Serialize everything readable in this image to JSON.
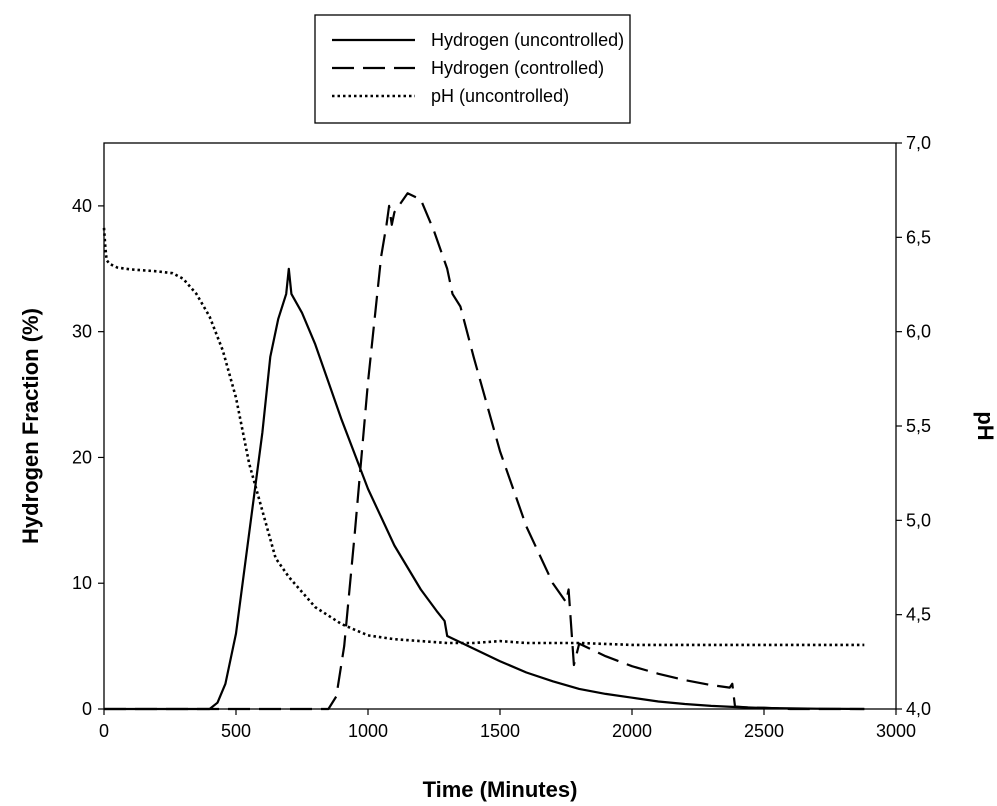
{
  "chart_data": {
    "type": "line",
    "title": "",
    "xlabel": "Time (Minutes)",
    "ylabel": "Hydrogen Fraction (%)",
    "y2label": "pH",
    "xlim": [
      0,
      3000
    ],
    "ylim": [
      0,
      45
    ],
    "y2lim": [
      4.0,
      7.0
    ],
    "x_ticks": [
      "0",
      "500",
      "1000",
      "1500",
      "2000",
      "2500",
      "3000"
    ],
    "y_ticks": [
      "0",
      "10",
      "20",
      "30",
      "40"
    ],
    "y2_ticks": [
      "4,0",
      "4,5",
      "5,0",
      "5,5",
      "6,0",
      "6,5",
      "7,0"
    ],
    "grid": false,
    "legend_position": "top-center",
    "series": [
      {
        "name": "Hydrogen (uncontrolled)",
        "axis": "left",
        "style": "solid",
        "color": "#000000",
        "x": [
          0,
          400,
          430,
          460,
          500,
          550,
          600,
          630,
          660,
          690,
          700,
          705,
          710,
          750,
          800,
          900,
          1000,
          1100,
          1200,
          1260,
          1290,
          1300,
          1400,
          1500,
          1600,
          1700,
          1800,
          1900,
          2000,
          2100,
          2200,
          2300,
          2400,
          2500,
          2600,
          2700,
          2880
        ],
        "y": [
          0,
          0,
          0.5,
          2,
          6,
          14,
          22,
          28,
          31,
          33,
          35,
          34,
          33,
          31.5,
          29,
          23,
          17.5,
          13,
          9.5,
          7.8,
          7,
          5.8,
          4.8,
          3.8,
          2.9,
          2.2,
          1.6,
          1.2,
          0.9,
          0.6,
          0.4,
          0.25,
          0.15,
          0.08,
          0.05,
          0.02,
          0
        ]
      },
      {
        "name": "Hydrogen (controlled)",
        "axis": "left",
        "style": "dashed",
        "color": "#000000",
        "x": [
          0,
          850,
          880,
          910,
          950,
          1000,
          1050,
          1070,
          1080,
          1090,
          1100,
          1150,
          1200,
          1250,
          1300,
          1320,
          1350,
          1400,
          1500,
          1600,
          1700,
          1750,
          1760,
          1780,
          1800,
          1900,
          2000,
          2100,
          2200,
          2300,
          2370,
          2380,
          2390,
          2450,
          2500,
          2600,
          2700,
          2880
        ],
        "y": [
          0,
          0,
          1,
          5,
          14,
          26,
          36,
          38.5,
          40,
          38.5,
          39.5,
          41,
          40.5,
          38,
          35,
          33,
          32,
          28,
          20.5,
          14.5,
          10,
          8.5,
          9.5,
          3.5,
          5.2,
          4.2,
          3.4,
          2.8,
          2.3,
          1.9,
          1.7,
          2,
          0.2,
          0.1,
          0.1,
          0,
          0,
          0
        ]
      },
      {
        "name": "pH (uncontrolled)",
        "axis": "right",
        "style": "dotted",
        "color": "#000000",
        "x": [
          0,
          5,
          10,
          20,
          50,
          100,
          200,
          260,
          300,
          350,
          400,
          450,
          500,
          550,
          600,
          650,
          700,
          750,
          800,
          900,
          1000,
          1100,
          1200,
          1300,
          1400,
          1500,
          1600,
          1800,
          2000,
          2200,
          2400,
          2600,
          2880
        ],
        "y": [
          6.55,
          6.45,
          6.38,
          6.36,
          6.34,
          6.33,
          6.32,
          6.31,
          6.28,
          6.2,
          6.08,
          5.9,
          5.65,
          5.3,
          5.05,
          4.8,
          4.7,
          4.62,
          4.54,
          4.45,
          4.39,
          4.37,
          4.36,
          4.35,
          4.35,
          4.36,
          4.35,
          4.35,
          4.34,
          4.34,
          4.34,
          4.34,
          4.34
        ]
      }
    ]
  }
}
